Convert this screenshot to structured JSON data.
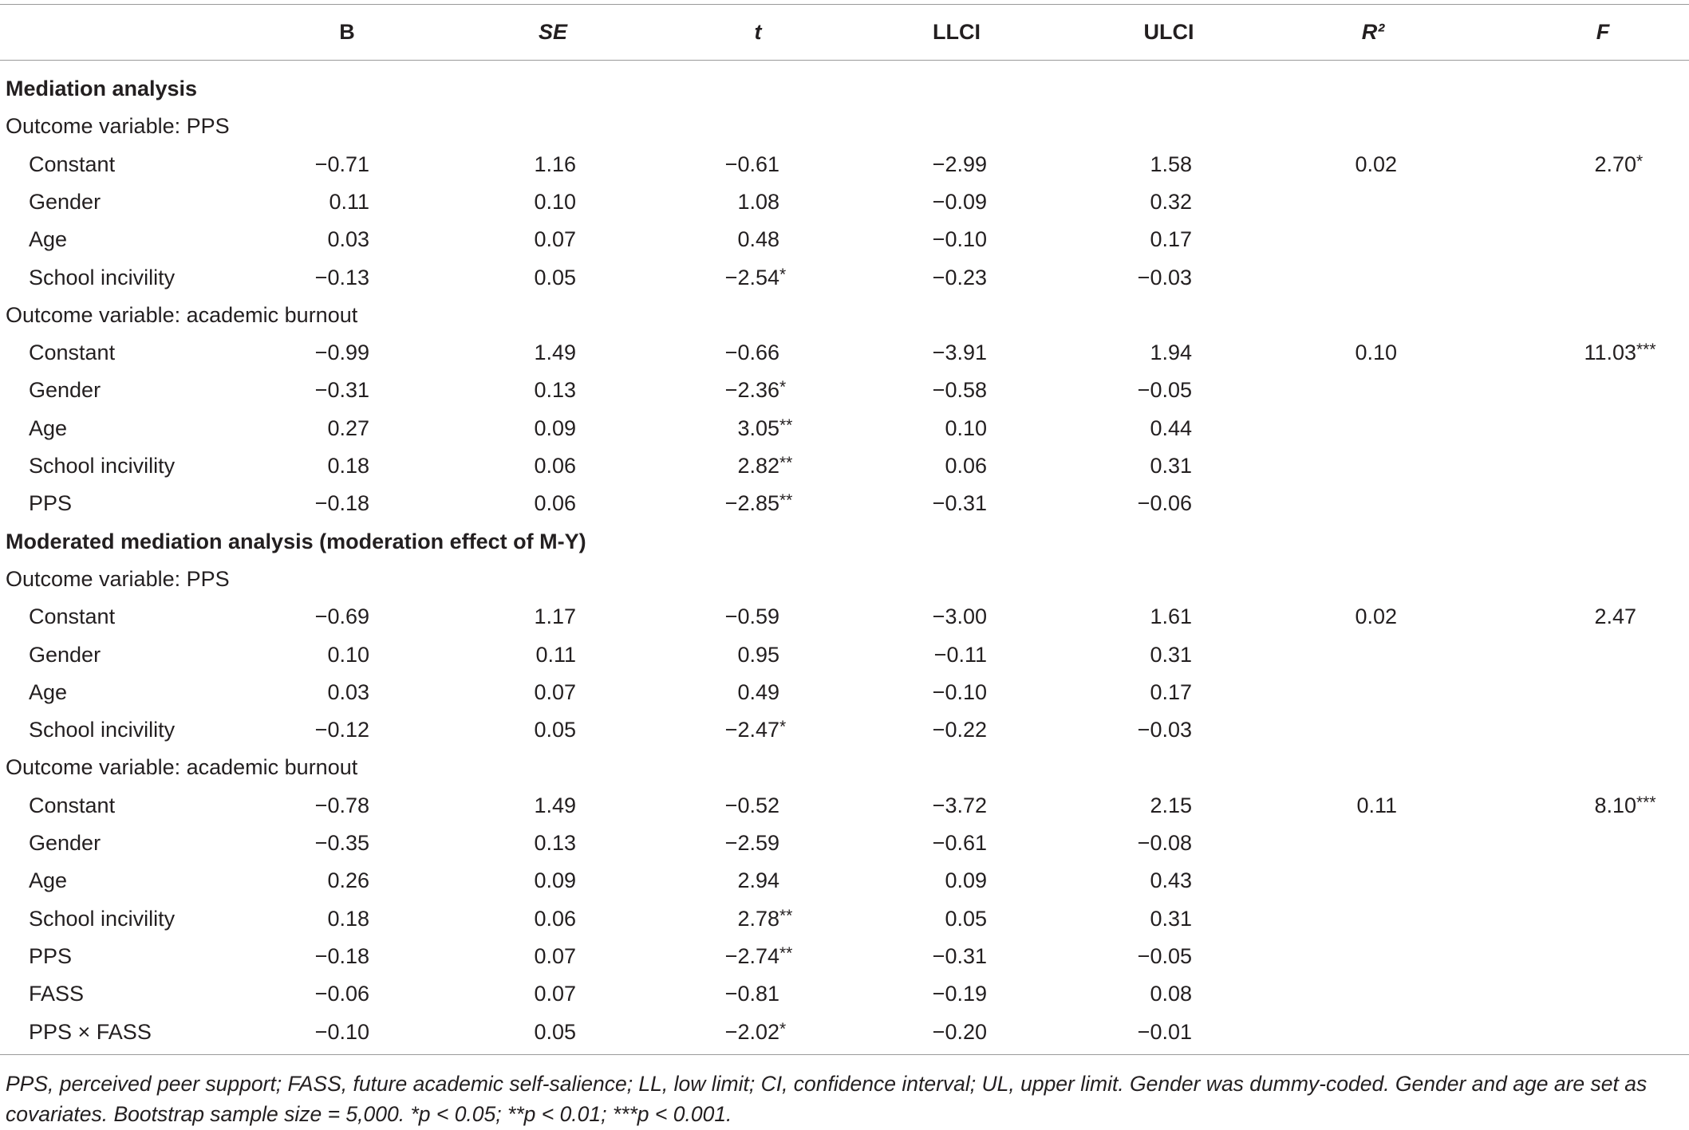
{
  "table": {
    "columns": [
      "B",
      "SE",
      "t",
      "LLCI",
      "ULCI",
      "R²",
      "F"
    ],
    "sections": [
      {
        "title": "Mediation analysis",
        "groups": [
          {
            "title": "Outcome variable: PPS",
            "rows": [
              {
                "label": "Constant",
                "values": [
                  "−0.71",
                  "1.16",
                  "−0.61",
                  "−2.99",
                  "1.58"
                ],
                "r2": "0.02",
                "f": "2.70*"
              },
              {
                "label": "Gender",
                "values": [
                  "0.11",
                  "0.10",
                  "1.08",
                  "−0.09",
                  "0.32"
                ]
              },
              {
                "label": "Age",
                "values": [
                  "0.03",
                  "0.07",
                  "0.48",
                  "−0.10",
                  "0.17"
                ]
              },
              {
                "label": "School incivility",
                "values": [
                  "−0.13",
                  "0.05",
                  "−2.54*",
                  "−0.23",
                  "−0.03"
                ]
              }
            ]
          },
          {
            "title": "Outcome variable: academic burnout",
            "rows": [
              {
                "label": "Constant",
                "values": [
                  "−0.99",
                  "1.49",
                  "−0.66",
                  "−3.91",
                  "1.94"
                ],
                "r2": "0.10",
                "f": "11.03***"
              },
              {
                "label": "Gender",
                "values": [
                  "−0.31",
                  "0.13",
                  "−2.36*",
                  "−0.58",
                  "−0.05"
                ]
              },
              {
                "label": "Age",
                "values": [
                  "0.27",
                  "0.09",
                  "3.05**",
                  "0.10",
                  "0.44"
                ]
              },
              {
                "label": "School incivility",
                "values": [
                  "0.18",
                  "0.06",
                  "2.82**",
                  "0.06",
                  "0.31"
                ]
              },
              {
                "label": "PPS",
                "values": [
                  "−0.18",
                  "0.06",
                  "−2.85**",
                  "−0.31",
                  "−0.06"
                ]
              }
            ]
          }
        ]
      },
      {
        "title": "Moderated mediation analysis (moderation effect of M-Y)",
        "groups": [
          {
            "title": "Outcome variable: PPS",
            "rows": [
              {
                "label": "Constant",
                "values": [
                  "−0.69",
                  "1.17",
                  "−0.59",
                  "−3.00",
                  "1.61"
                ],
                "r2": "0.02",
                "f": "2.47"
              },
              {
                "label": "Gender",
                "values": [
                  "0.10",
                  "0.11",
                  "0.95",
                  "−0.11",
                  "0.31"
                ]
              },
              {
                "label": "Age",
                "values": [
                  "0.03",
                  "0.07",
                  "0.49",
                  "−0.10",
                  "0.17"
                ]
              },
              {
                "label": "School incivility",
                "values": [
                  "−0.12",
                  "0.05",
                  "−2.47*",
                  "−0.22",
                  "−0.03"
                ]
              }
            ]
          },
          {
            "title": "Outcome variable: academic burnout",
            "rows": [
              {
                "label": "Constant",
                "values": [
                  "−0.78",
                  "1.49",
                  "−0.52",
                  "−3.72",
                  "2.15"
                ],
                "r2": "0.11",
                "f": "8.10***"
              },
              {
                "label": "Gender",
                "values": [
                  "−0.35",
                  "0.13",
                  "−2.59",
                  "−0.61",
                  "−0.08"
                ]
              },
              {
                "label": "Age",
                "values": [
                  "0.26",
                  "0.09",
                  "2.94",
                  "0.09",
                  "0.43"
                ]
              },
              {
                "label": "School incivility",
                "values": [
                  "0.18",
                  "0.06",
                  "2.78**",
                  "0.05",
                  "0.31"
                ]
              },
              {
                "label": "PPS",
                "values": [
                  "−0.18",
                  "0.07",
                  "−2.74**",
                  "−0.31",
                  "−0.05"
                ]
              },
              {
                "label": "FASS",
                "values": [
                  "−0.06",
                  "0.07",
                  "−0.81",
                  "−0.19",
                  "0.08"
                ]
              },
              {
                "label": "PPS × FASS",
                "values": [
                  "−0.10",
                  "0.05",
                  "−2.02*",
                  "−0.20",
                  "−0.01"
                ]
              }
            ]
          }
        ]
      }
    ],
    "note": "PPS, perceived peer support; FASS, future academic self-salience; LL, low limit; CI, confidence interval; UL, upper limit. Gender was dummy-coded. Gender and age are set as covariates. Bootstrap sample size = 5,000. *p < 0.05; **p < 0.01; ***p < 0.001."
  }
}
